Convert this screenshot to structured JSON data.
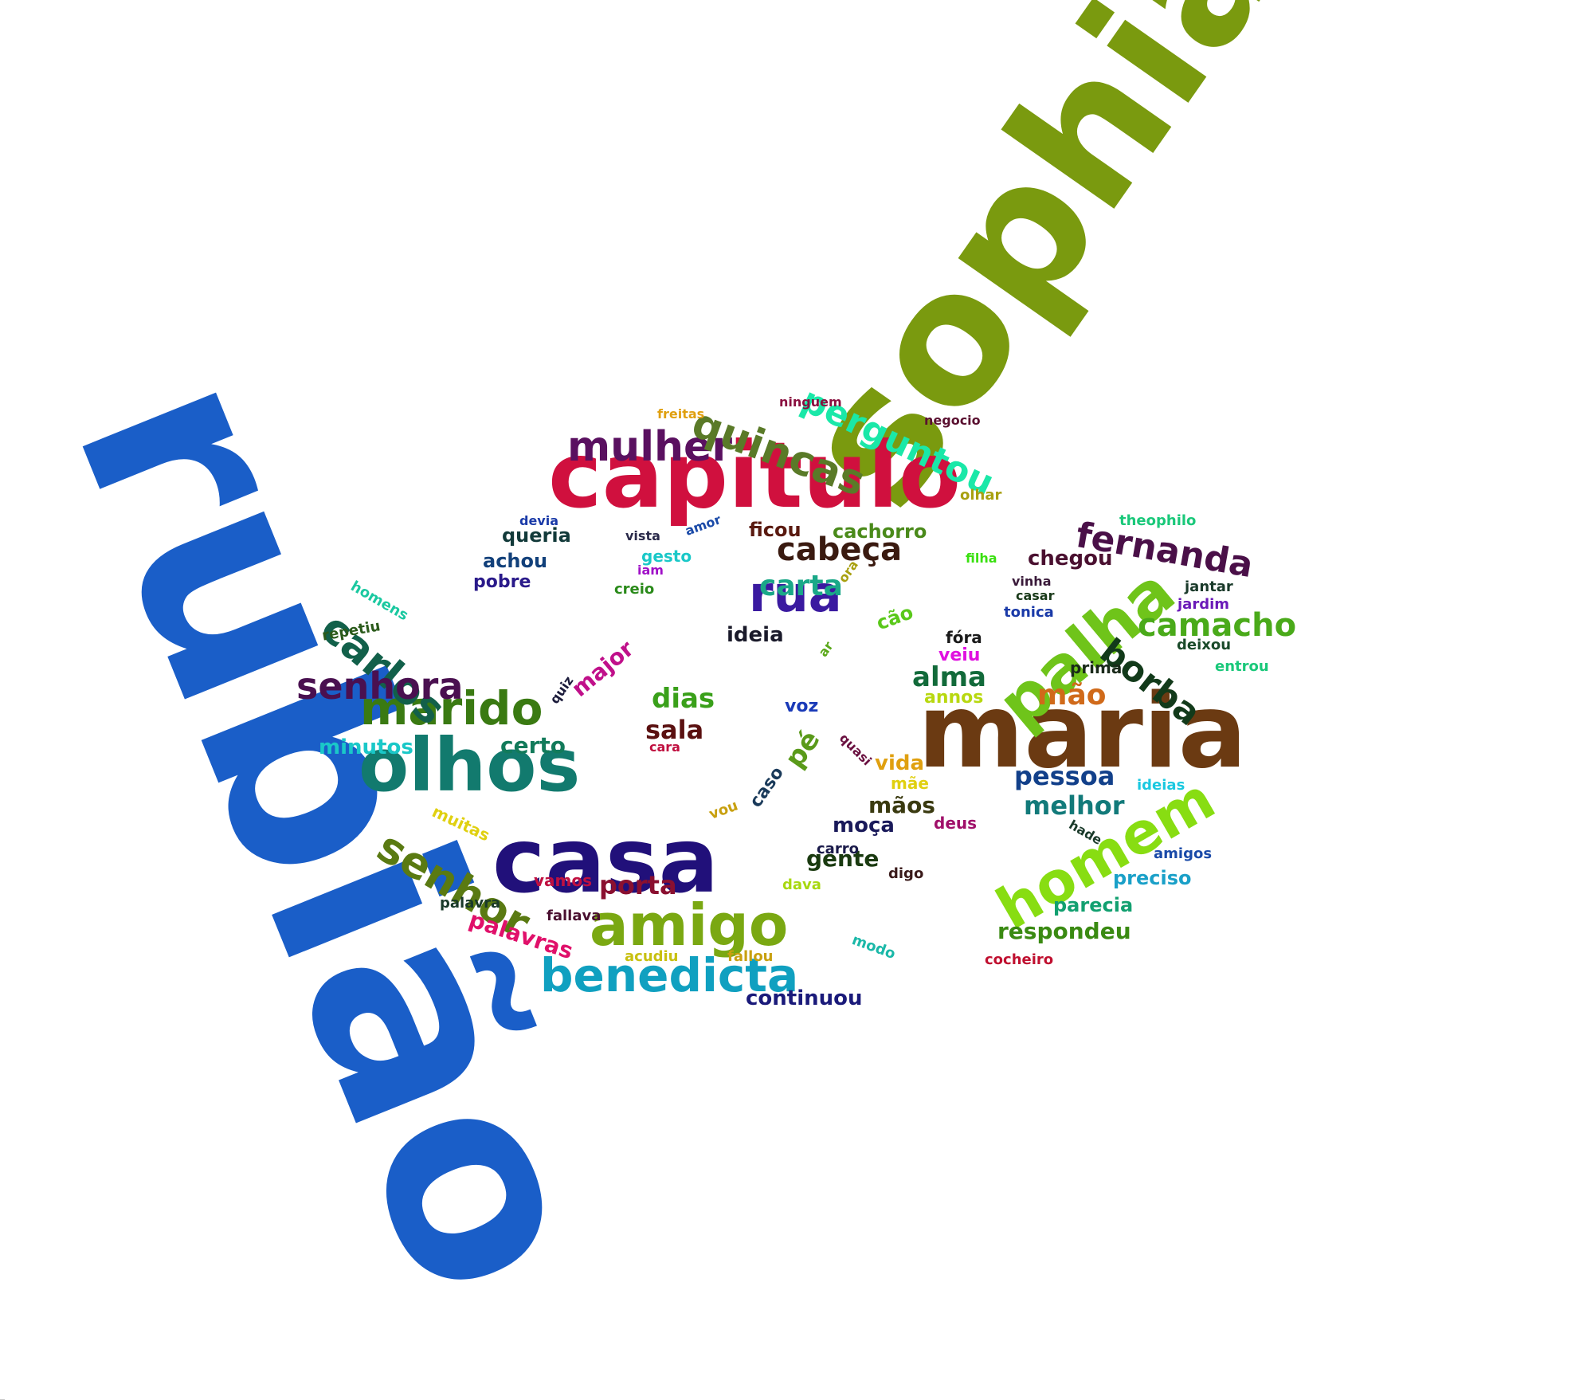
{
  "words": [
    {
      "text": "rubião",
      "color": "#1a5ec8"
    },
    {
      "text": "sophia",
      "color": "#7a9a0f"
    },
    {
      "text": "maria",
      "color": "#6b3a12"
    },
    {
      "text": "capitulo",
      "color": "#d0103e"
    },
    {
      "text": "casa",
      "color": "#21107a"
    },
    {
      "text": "olhos",
      "color": "#127a6e"
    },
    {
      "text": "palha",
      "color": "#6fc41a"
    },
    {
      "text": "homem",
      "color": "#88dd12"
    },
    {
      "text": "amigo",
      "color": "#7aa812"
    },
    {
      "text": "marido",
      "color": "#3a7a12"
    },
    {
      "text": "benedicta",
      "color": "#10a0c0"
    },
    {
      "text": "mulher",
      "color": "#5a1060"
    },
    {
      "text": "quincas",
      "color": "#5a7a28"
    },
    {
      "text": "perguntou",
      "color": "#1ae8a8"
    },
    {
      "text": "fernanda",
      "color": "#4a1048"
    },
    {
      "text": "rua",
      "color": "#3a1aa0"
    },
    {
      "text": "carlos",
      "color": "#12604a"
    },
    {
      "text": "senhor",
      "color": "#5a7a12"
    },
    {
      "text": "senhora",
      "color": "#4a1050"
    },
    {
      "text": "borba",
      "color": "#123a1a"
    },
    {
      "text": "camacho",
      "color": "#4aaa1a"
    },
    {
      "text": "cabeça",
      "color": "#3a1a10"
    },
    {
      "text": "carta",
      "color": "#1aa888"
    },
    {
      "text": "mão",
      "color": "#d06a1a"
    },
    {
      "text": "alma",
      "color": "#126a3a"
    },
    {
      "text": "dias",
      "color": "#3aa01a"
    },
    {
      "text": "sala",
      "color": "#5a1010"
    },
    {
      "text": "porta",
      "color": "#8a1030"
    },
    {
      "text": "pessoa",
      "color": "#12408a"
    },
    {
      "text": "melhor",
      "color": "#127a7a"
    },
    {
      "text": "palavras",
      "color": "#e0106a"
    },
    {
      "text": "respondeu",
      "color": "#3a8a12"
    },
    {
      "text": "parecia",
      "color": "#12a070"
    },
    {
      "text": "gente",
      "color": "#1a3a10"
    },
    {
      "text": "chegou",
      "color": "#4a1030"
    },
    {
      "text": "major",
      "color": "#c0108a"
    },
    {
      "text": "certo",
      "color": "#127a5a"
    },
    {
      "text": "minutos",
      "color": "#1ac8c8"
    },
    {
      "text": "continuou",
      "color": "#1a1a7a"
    },
    {
      "text": "ficou",
      "color": "#5a1a10"
    },
    {
      "text": "cachorro",
      "color": "#4a8a1a"
    },
    {
      "text": "mãos",
      "color": "#3a3a10"
    },
    {
      "text": "moça",
      "color": "#1a1a5a"
    },
    {
      "text": "pé",
      "color": "#5a9a1a"
    },
    {
      "text": "ideia",
      "color": "#1a1a2a"
    },
    {
      "text": "queria",
      "color": "#123a3a"
    },
    {
      "text": "achou",
      "color": "#12407a"
    },
    {
      "text": "pobre",
      "color": "#2a1a8a"
    },
    {
      "text": "preciso",
      "color": "#1aa0c8"
    },
    {
      "text": "annos",
      "color": "#b8d810"
    },
    {
      "text": "vida",
      "color": "#e0a010"
    },
    {
      "text": "caso",
      "color": "#1a3a5a"
    },
    {
      "text": "voz",
      "color": "#1a3ab8"
    },
    {
      "text": "cão",
      "color": "#5ac81a"
    },
    {
      "text": "fóra",
      "color": "#1a1a1a"
    },
    {
      "text": "veiu",
      "color": "#e010e0"
    },
    {
      "text": "prima",
      "color": "#1a2a1a"
    },
    {
      "text": "deixou",
      "color": "#1a4a2a"
    },
    {
      "text": "jantar",
      "color": "#1a3a2a"
    },
    {
      "text": "jardim",
      "color": "#6a1ab8"
    },
    {
      "text": "tonica",
      "color": "#1a3aa8"
    },
    {
      "text": "vinha",
      "color": "#3a1a3a"
    },
    {
      "text": "casar",
      "color": "#1a3a1a"
    },
    {
      "text": "filha",
      "color": "#3ae010"
    },
    {
      "text": "olhar",
      "color": "#a8a010"
    },
    {
      "text": "theophilo",
      "color": "#1ac87a"
    },
    {
      "text": "negocio",
      "color": "#5a1030"
    },
    {
      "text": "ninguem",
      "color": "#8a1040"
    },
    {
      "text": "freitas",
      "color": "#e0a010"
    },
    {
      "text": "amor",
      "color": "#1a4aa8"
    },
    {
      "text": "vista",
      "color": "#2a2a4a"
    },
    {
      "text": "devia",
      "color": "#1a3aa8"
    },
    {
      "text": "gesto",
      "color": "#1ac8c8"
    },
    {
      "text": "iam",
      "color": "#a010c8"
    },
    {
      "text": "creio",
      "color": "#2a8a1a"
    },
    {
      "text": "ora",
      "color": "#a8a010"
    },
    {
      "text": "homens",
      "color": "#1ac8a0"
    },
    {
      "text": "repetiu",
      "color": "#2a5a1a"
    },
    {
      "text": "quiz",
      "color": "#1a1a3a"
    },
    {
      "text": "ar",
      "color": "#5aa81a"
    },
    {
      "text": "cara",
      "color": "#c01040"
    },
    {
      "text": "quasi",
      "color": "#6a1040"
    },
    {
      "text": "mãe",
      "color": "#e0d010"
    },
    {
      "text": "ideias",
      "color": "#1ac8e0"
    },
    {
      "text": "vou",
      "color": "#c8a010"
    },
    {
      "text": "deus",
      "color": "#a0106a"
    },
    {
      "text": "hade",
      "color": "#1a3a2a"
    },
    {
      "text": "amigos",
      "color": "#1a4aa8"
    },
    {
      "text": "muitas",
      "color": "#e0d010"
    },
    {
      "text": "vamos",
      "color": "#c01040"
    },
    {
      "text": "palavra",
      "color": "#1a3a2a"
    },
    {
      "text": "carro",
      "color": "#1a1a4a"
    },
    {
      "text": "digo",
      "color": "#3a1a1a"
    },
    {
      "text": "dava",
      "color": "#a8d810"
    },
    {
      "text": "fallava",
      "color": "#4a1030"
    },
    {
      "text": "modo",
      "color": "#1ab8a8"
    },
    {
      "text": "acudiu",
      "color": "#c8c010"
    },
    {
      "text": "fallou",
      "color": "#c8a010"
    },
    {
      "text": "cocheiro",
      "color": "#c01030"
    },
    {
      "text": "entrou",
      "color": "#1ac87a"
    }
  ]
}
